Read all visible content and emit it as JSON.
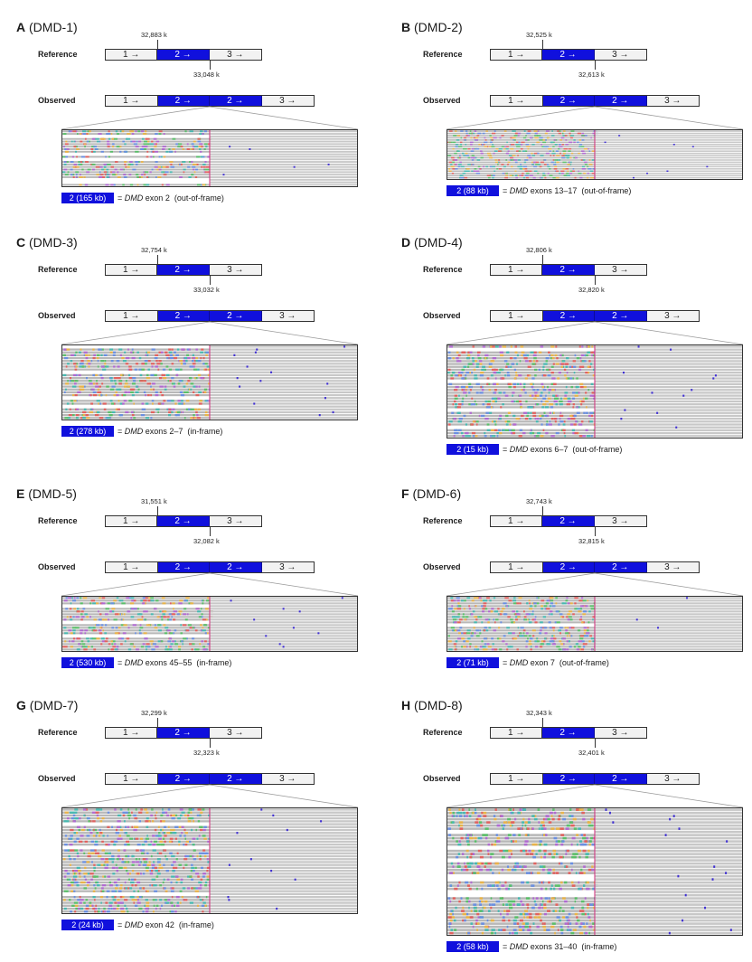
{
  "labels": {
    "reference": "Reference",
    "observed": "Observed",
    "ref_segments": [
      "1 →",
      "2 →",
      "3 →"
    ],
    "obs_segments": [
      "1 →",
      "2 →",
      "2 →",
      "3 →"
    ],
    "equals": "=",
    "gene": "DMD"
  },
  "colors": {
    "duplication": "#1010dd",
    "segment": "#f2f2f2",
    "read": "#c8c8c8"
  },
  "panels": [
    {
      "letter": "A",
      "sample": "(DMD-1)",
      "start": "32,883 k",
      "end": "33,048 k",
      "size": "2 (165 kb)",
      "exon_text": "exon 2",
      "frame": "(out-of-frame)",
      "read_rows": 22,
      "break_fraction": 0.5
    },
    {
      "letter": "B",
      "sample": "(DMD-2)",
      "start": "32,525 k",
      "end": "32,613 k",
      "size": "2 (88 kb)",
      "exon_text": "exons 13–17",
      "frame": "(out-of-frame)",
      "read_rows": 22,
      "break_fraction": 0.5
    },
    {
      "letter": "C",
      "sample": "(DMD-3)",
      "start": "32,754 k",
      "end": "33,032 k",
      "size": "2 (278 kb)",
      "exon_text": "exons 2–7",
      "frame": "(in-frame)",
      "read_rows": 26,
      "break_fraction": 0.5
    },
    {
      "letter": "D",
      "sample": "(DMD-4)",
      "start": "32,806 k",
      "end": "32,820 k",
      "size": "2 (15 kb)",
      "exon_text": "exons 6–7",
      "frame": "(out-of-frame)",
      "read_rows": 32,
      "break_fraction": 0.5
    },
    {
      "letter": "E",
      "sample": "(DMD-5)",
      "start": "31,551 k",
      "end": "32,082 k",
      "size": "2 (530 kb)",
      "exon_text": "exons 45–55",
      "frame": "(in-frame)",
      "read_rows": 20,
      "break_fraction": 0.5
    },
    {
      "letter": "F",
      "sample": "(DMD-6)",
      "start": "32,743 k",
      "end": "32,815 k",
      "size": "2 (71 kb)",
      "exon_text": "exon 7",
      "frame": "(out-of-frame)",
      "read_rows": 20,
      "break_fraction": 0.5
    },
    {
      "letter": "G",
      "sample": "(DMD-7)",
      "start": "32,299 k",
      "end": "32,323 k",
      "size": "2 (24 kb)",
      "exon_text": "exon 42",
      "frame": "(in-frame)",
      "read_rows": 36,
      "break_fraction": 0.5
    },
    {
      "letter": "H",
      "sample": "(DMD-8)",
      "start": "32,343 k",
      "end": "32,401 k",
      "size": "2 (58 kb)",
      "exon_text": "exons 31–40",
      "frame": "(in-frame)",
      "read_rows": 40,
      "break_fraction": 0.5
    }
  ]
}
